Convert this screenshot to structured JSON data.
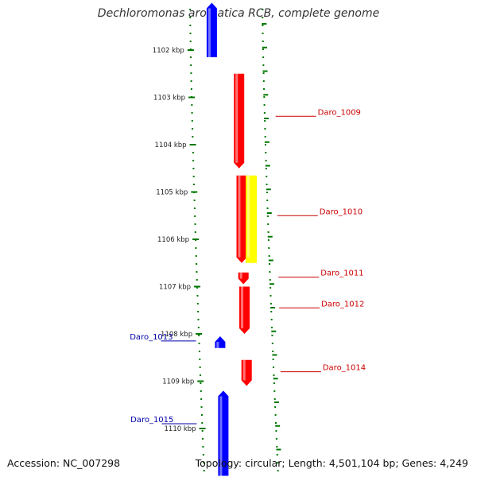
{
  "title": "Dechloromonas aromatica RCB, complete genome",
  "footer": {
    "accession": "Accession: NC_007298",
    "topology": "Topology: circular; Length: 4,501,104 bp; Genes: 4,249"
  },
  "colors": {
    "forward_gene": "#ff0000",
    "reverse_gene": "#0000ff",
    "rna_feature": "#ffff00",
    "backbone": "#888888",
    "tick": "#007700",
    "forward_label": "#cc0000",
    "reverse_label": "#0000aa"
  },
  "axis": {
    "unit": "kbp",
    "ticks": [
      {
        "kbp": 1102,
        "label": "1102 kbp"
      },
      {
        "kbp": 1103,
        "label": "1103 kbp"
      },
      {
        "kbp": 1104,
        "label": "1104 kbp"
      },
      {
        "kbp": 1105,
        "label": "1105 kbp"
      },
      {
        "kbp": 1106,
        "label": "1106 kbp"
      },
      {
        "kbp": 1107,
        "label": "1107 kbp"
      },
      {
        "kbp": 1108,
        "label": "1108 kbp"
      },
      {
        "kbp": 1109,
        "label": "1109 kbp"
      },
      {
        "kbp": 1110,
        "label": "1110 kbp"
      }
    ]
  },
  "features": [
    {
      "name": "prev-reverse-gene",
      "strand": "reverse",
      "start_kbp": 1101.0,
      "end_kbp": 1102.15,
      "label": ""
    },
    {
      "name": "Daro_1009",
      "strand": "forward",
      "start_kbp": 1102.5,
      "end_kbp": 1104.5,
      "label": "Daro_1009",
      "label_kbp": 1103.4
    },
    {
      "name": "Daro_1010",
      "strand": "forward",
      "start_kbp": 1104.65,
      "end_kbp": 1106.5,
      "label": "Daro_1010",
      "label_kbp": 1105.5
    },
    {
      "name": "rna-track",
      "strand": "rna",
      "start_kbp": 1104.65,
      "end_kbp": 1106.5,
      "label": ""
    },
    {
      "name": "Daro_1011",
      "strand": "forward",
      "start_kbp": 1106.7,
      "end_kbp": 1106.95,
      "label": "Daro_1011",
      "label_kbp": 1106.8
    },
    {
      "name": "Daro_1012",
      "strand": "forward",
      "start_kbp": 1107.0,
      "end_kbp": 1108.0,
      "label": "Daro_1012",
      "label_kbp": 1107.45
    },
    {
      "name": "Daro_1013",
      "strand": "reverse",
      "start_kbp": 1108.05,
      "end_kbp": 1108.3,
      "label": "Daro_1013",
      "label_kbp": 1108.15
    },
    {
      "name": "Daro_1014",
      "strand": "forward",
      "start_kbp": 1108.55,
      "end_kbp": 1109.1,
      "label": "Daro_1014",
      "label_kbp": 1108.8
    },
    {
      "name": "Daro_1015",
      "strand": "reverse",
      "start_kbp": 1109.2,
      "end_kbp": 1111.0,
      "label": "Daro_1015",
      "label_kbp": 1109.9
    }
  ]
}
